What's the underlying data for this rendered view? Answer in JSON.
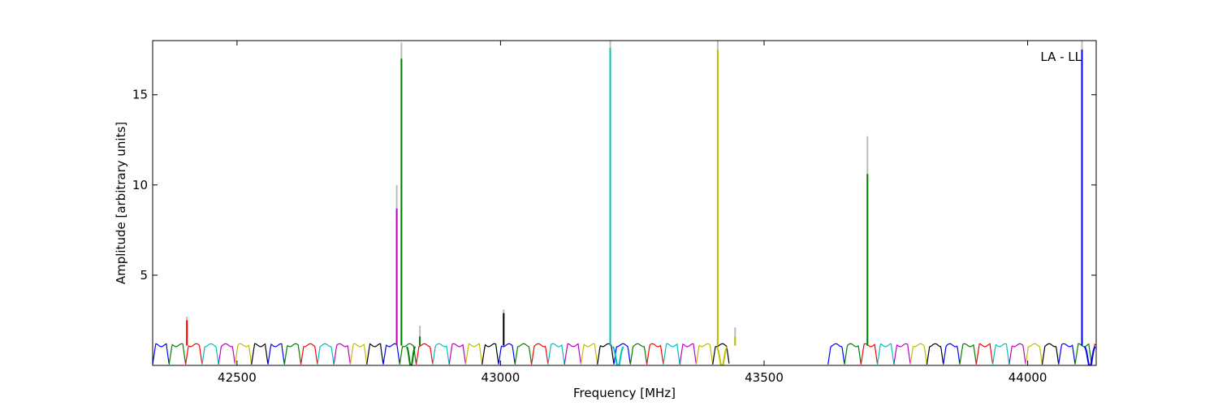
{
  "chart_data": {
    "type": "line",
    "title": "",
    "annotation": "LA - LL",
    "xlabel": "Frequency [MHz]",
    "ylabel": "Amplitude [arbitrary units]",
    "xlim": [
      42340,
      44130
    ],
    "ylim": [
      0,
      18
    ],
    "xticks": [
      42500,
      43000,
      43500,
      44000
    ],
    "yticks": [
      5,
      10,
      15
    ],
    "grid": false,
    "colors": [
      "#0000ff",
      "#008000",
      "#ff0000",
      "#00bfbf",
      "#bf00bf",
      "#bfbf00",
      "#000000"
    ],
    "peak_color": "#bbbbbb",
    "segments": [
      {
        "start": 42340,
        "end": 44130,
        "width": 31.25,
        "gap": 2,
        "sw": 24,
        "sh": 1.5,
        "gap_start": 43460,
        "gap_end": 43620
      }
    ],
    "peaks": [
      {
        "x": 42405,
        "y": 2.5,
        "ghost_y": 2.7,
        "color": "#ff0000"
      },
      {
        "x": 42803,
        "y": 8.7,
        "ghost_y": 10.0,
        "color": "#bf00bf"
      },
      {
        "x": 42812,
        "y": 17.0,
        "ghost_y": 17.9,
        "color": "#008000"
      },
      {
        "x": 42847,
        "y": 1.6,
        "ghost_y": 2.2,
        "color": "#008000"
      },
      {
        "x": 43006,
        "y": 2.9,
        "ghost_y": 3.1,
        "color": "#000000"
      },
      {
        "x": 43208,
        "y": 17.6,
        "ghost_y": 18.0,
        "color": "#00bfbf"
      },
      {
        "x": 43412,
        "y": 17.5,
        "ghost_y": 18.0,
        "color": "#bfbf00"
      },
      {
        "x": 43445,
        "y": 1.6,
        "ghost_y": 2.1,
        "color": "#bfbf00"
      },
      {
        "x": 43696,
        "y": 10.6,
        "ghost_y": 12.7,
        "color": "#008000"
      },
      {
        "x": 44103,
        "y": 17.5,
        "ghost_y": 18.0,
        "color": "#0000ff"
      }
    ],
    "absorptions": [
      {
        "x": 42830,
        "depth": 1.2,
        "w": 8,
        "color": "#008000"
      },
      {
        "x": 43223,
        "depth": 1.2,
        "w": 10,
        "color": "#00bfbf"
      },
      {
        "x": 43420,
        "depth": 1.2,
        "w": 10,
        "color": "#bfbf00"
      },
      {
        "x": 44118,
        "depth": 1.2,
        "w": 10,
        "color": "#0000ff"
      }
    ]
  }
}
